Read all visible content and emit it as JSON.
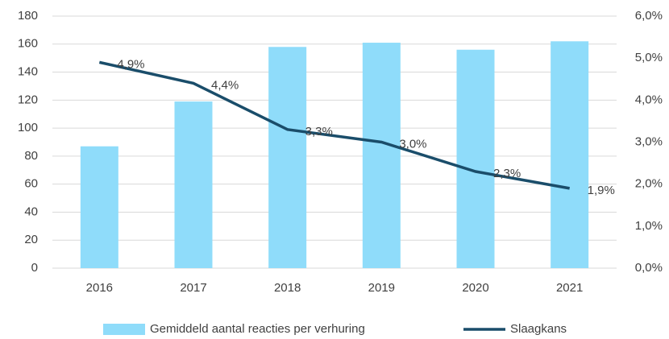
{
  "chart_data": {
    "type": "bar_line",
    "categories": [
      "2016",
      "2017",
      "2018",
      "2019",
      "2020",
      "2021"
    ],
    "series": [
      {
        "name": "Gemiddeld aantal reacties per verhuring",
        "type": "bar",
        "color": "#8fdcfa",
        "values": [
          87,
          119,
          158,
          161,
          156,
          162
        ]
      },
      {
        "name": "Slaagkans",
        "type": "line",
        "axis": "y2",
        "color": "#1a4d6a",
        "values": [
          4.9,
          4.4,
          3.3,
          3.0,
          2.3,
          1.9
        ],
        "value_labels": [
          "4,9%",
          "4,4%",
          "3,3%",
          "3,0%",
          "2,3%",
          "1,9%"
        ]
      }
    ],
    "ylim": [
      0,
      180
    ],
    "yticks": [
      0,
      20,
      40,
      60,
      80,
      100,
      120,
      140,
      160,
      180
    ],
    "y2lim": [
      0,
      6
    ],
    "y2ticks": [
      {
        "value": 0,
        "label": "0,0%"
      },
      {
        "value": 1,
        "label": "1,0%"
      },
      {
        "value": 2,
        "label": "2,0%"
      },
      {
        "value": 3,
        "label": "3,0%"
      },
      {
        "value": 4,
        "label": "4,0%"
      },
      {
        "value": 5,
        "label": "5,0%"
      },
      {
        "value": 6,
        "label": "6,0%"
      }
    ],
    "grid": true,
    "legend": "bottom"
  }
}
